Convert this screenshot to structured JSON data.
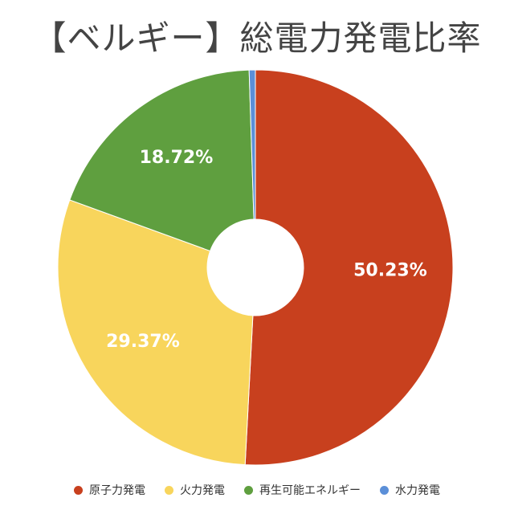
{
  "chart_data": {
    "type": "pie",
    "style": "donut",
    "title": "【ベルギー】総電力発電比率",
    "legend_position": "bottom",
    "slices": [
      {
        "label": "原子力発電",
        "value": 50.23,
        "display": "50.23%",
        "color": "#c8401e"
      },
      {
        "label": "火力発電",
        "value": 29.37,
        "display": "29.37%",
        "color": "#f8d55c"
      },
      {
        "label": "再生可能エネルギー",
        "value": 18.72,
        "display": "18.72%",
        "color": "#5f9f3f"
      },
      {
        "label": "水力発電",
        "value": 0.5,
        "display": "",
        "color": "#5b8fd8"
      }
    ]
  }
}
